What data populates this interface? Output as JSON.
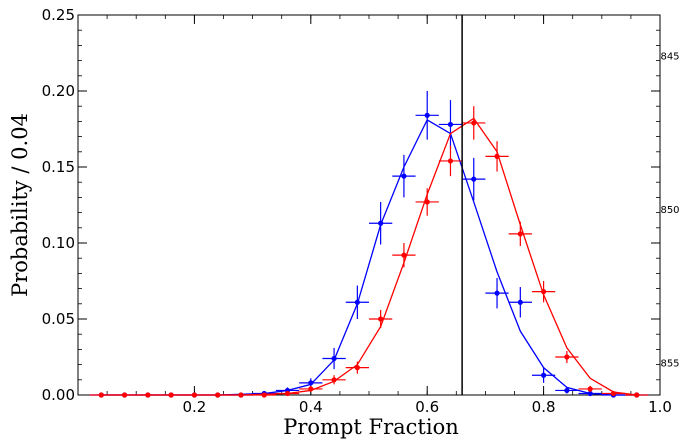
{
  "chart_data": {
    "type": "line",
    "xlabel": "Prompt Fraction",
    "ylabel": "Probability / 0.04",
    "xlim": [
      0.0,
      1.0
    ],
    "ylim": [
      0.0,
      0.25
    ],
    "x_ticks": [
      "0.2",
      "0.4",
      "0.6",
      "0.8",
      "1.0"
    ],
    "y_ticks": [
      "0.00",
      "0.05",
      "0.10",
      "0.15",
      "0.20",
      "0.25"
    ],
    "x_tick_values": [
      0.2,
      0.4,
      0.6,
      0.8,
      1.0
    ],
    "y_tick_values": [
      0.0,
      0.05,
      0.1,
      0.15,
      0.2,
      0.25
    ],
    "grid": false,
    "vertical_line_x": 0.66,
    "line_numbers": [
      {
        "text": "845",
        "y": 0.2235
      },
      {
        "text": "850",
        "y": 0.1225
      },
      {
        "text": "855",
        "y": 0.0215
      }
    ],
    "series": [
      {
        "color": "#0000ff",
        "x": [
          0.04,
          0.08,
          0.12,
          0.16,
          0.2,
          0.24,
          0.28,
          0.32,
          0.36,
          0.4,
          0.44,
          0.48,
          0.52,
          0.56,
          0.6,
          0.64,
          0.68,
          0.72,
          0.76,
          0.8,
          0.84,
          0.88,
          0.92,
          0.96
        ],
        "values": [
          0.0,
          0.0,
          0.0,
          0.0,
          0.0,
          0.0,
          0.0,
          0.001,
          0.003,
          0.008,
          0.024,
          0.061,
          0.113,
          0.144,
          0.184,
          0.178,
          0.142,
          0.067,
          0.061,
          0.013,
          0.003,
          0.001,
          0.0,
          0.0
        ],
        "errors": [
          0.0,
          0.0,
          0.0,
          0.0,
          0.0,
          0.0,
          0.0,
          0.001,
          0.002,
          0.003,
          0.007,
          0.011,
          0.014,
          0.014,
          0.016,
          0.016,
          0.014,
          0.01,
          0.01,
          0.005,
          0.002,
          0.001,
          0.0,
          0.0
        ],
        "model": [
          0.0,
          0.0,
          0.0,
          0.0,
          0.0,
          0.0,
          0.0005,
          0.001,
          0.003,
          0.007,
          0.023,
          0.06,
          0.112,
          0.15,
          0.181,
          0.172,
          0.127,
          0.081,
          0.042,
          0.018,
          0.005,
          0.001,
          0.0,
          0.0
        ]
      },
      {
        "color": "#ff0000",
        "x": [
          0.04,
          0.08,
          0.12,
          0.16,
          0.2,
          0.24,
          0.28,
          0.32,
          0.36,
          0.4,
          0.44,
          0.48,
          0.52,
          0.56,
          0.6,
          0.64,
          0.68,
          0.72,
          0.76,
          0.8,
          0.84,
          0.88,
          0.92,
          0.96
        ],
        "values": [
          0.0,
          0.0,
          0.0,
          0.0,
          0.0,
          0.0,
          0.0,
          0.0,
          0.001,
          0.004,
          0.01,
          0.018,
          0.05,
          0.092,
          0.127,
          0.154,
          0.179,
          0.157,
          0.106,
          0.068,
          0.025,
          0.004,
          0.001,
          0.0
        ],
        "errors": [
          0.0,
          0.0,
          0.0,
          0.0,
          0.0,
          0.0,
          0.0,
          0.0,
          0.001,
          0.002,
          0.003,
          0.004,
          0.006,
          0.008,
          0.009,
          0.01,
          0.011,
          0.01,
          0.008,
          0.007,
          0.004,
          0.002,
          0.001,
          0.0
        ],
        "model": [
          0.0,
          0.0,
          0.0,
          0.0,
          0.0,
          0.0,
          0.0,
          0.0005,
          0.001,
          0.003,
          0.009,
          0.02,
          0.045,
          0.087,
          0.132,
          0.172,
          0.182,
          0.16,
          0.112,
          0.066,
          0.031,
          0.011,
          0.002,
          0.0
        ]
      }
    ]
  }
}
